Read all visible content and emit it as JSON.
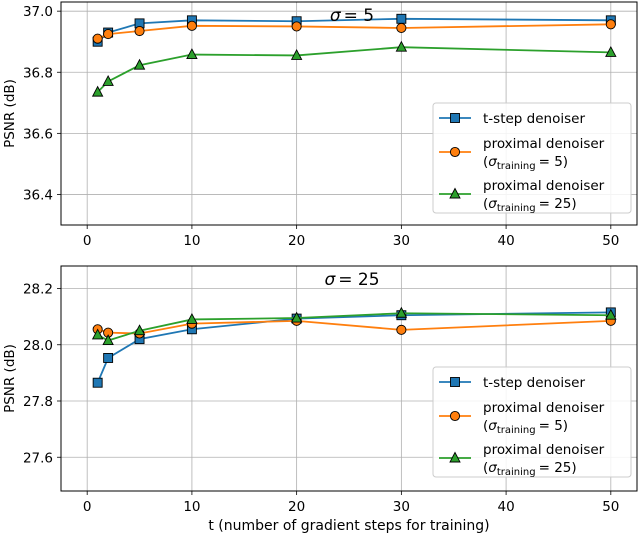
{
  "figure": {
    "shared_xlabel": "t (number of gradient steps for training)"
  },
  "chart_data": [
    {
      "type": "line",
      "title": "σ = 5",
      "title_main": "σ",
      "title_eq": "= 5",
      "xlabel": "",
      "ylabel": "PSNR (dB)",
      "xlim": [
        -2.5,
        52.5
      ],
      "ylim": [
        36.3,
        37.03
      ],
      "xticks": [
        0,
        10,
        20,
        30,
        40,
        50
      ],
      "yticks": [
        36.4,
        36.6,
        36.8,
        37.0
      ],
      "ytick_labels": [
        "36.4",
        "36.6",
        "36.8",
        "37.0"
      ],
      "grid": true,
      "legend_position": "center-right",
      "series": [
        {
          "name": "t-step denoiser",
          "legend_line1": "t-step denoiser",
          "color": "#1f77b4",
          "marker": "square",
          "x": [
            1,
            2,
            5,
            10,
            20,
            30,
            50
          ],
          "values": [
            36.9,
            36.93,
            36.96,
            36.97,
            36.967,
            36.975,
            36.97
          ]
        },
        {
          "name": "proximal denoiser (σ_training = 5)",
          "legend_line1": "proximal denoiser",
          "legend_sigma": "σ",
          "legend_sub": "training",
          "legend_eq": "= 5)",
          "color": "#ff7f0e",
          "marker": "circle",
          "x": [
            1,
            2,
            5,
            10,
            20,
            30,
            50
          ],
          "values": [
            36.91,
            36.925,
            36.935,
            36.952,
            36.95,
            36.945,
            36.957
          ]
        },
        {
          "name": "proximal denoiser (σ_training = 25)",
          "legend_line1": "proximal denoiser",
          "legend_sigma": "σ",
          "legend_sub": "training",
          "legend_eq": "= 25)",
          "color": "#2ca02c",
          "marker": "triangle",
          "x": [
            1,
            2,
            5,
            10,
            20,
            30,
            50
          ],
          "values": [
            36.735,
            36.77,
            36.823,
            36.858,
            36.855,
            36.882,
            36.865
          ]
        }
      ]
    },
    {
      "type": "line",
      "title": "σ = 25",
      "title_main": "σ",
      "title_eq": "= 25",
      "xlabel": "t (number of gradient steps for training)",
      "ylabel": "PSNR (dB)",
      "xlim": [
        -2.5,
        52.5
      ],
      "ylim": [
        27.48,
        28.28
      ],
      "xticks": [
        0,
        10,
        20,
        30,
        40,
        50
      ],
      "yticks": [
        27.6,
        27.8,
        28.0,
        28.2
      ],
      "ytick_labels": [
        "27.6",
        "27.8",
        "28.0",
        "28.2"
      ],
      "grid": true,
      "legend_position": "center-right",
      "series": [
        {
          "name": "t-step denoiser",
          "legend_line1": "t-step denoiser",
          "color": "#1f77b4",
          "marker": "square",
          "x": [
            1,
            2,
            5,
            10,
            20,
            30,
            50
          ],
          "values": [
            27.865,
            27.953,
            28.02,
            28.055,
            28.093,
            28.105,
            28.115
          ]
        },
        {
          "name": "proximal denoiser (σ_training = 5)",
          "legend_line1": "proximal denoiser",
          "legend_sigma": "σ",
          "legend_sub": "training",
          "legend_eq": "= 5)",
          "color": "#ff7f0e",
          "marker": "circle",
          "x": [
            1,
            2,
            5,
            10,
            20,
            30,
            50
          ],
          "values": [
            28.055,
            28.043,
            28.04,
            28.075,
            28.085,
            28.053,
            28.085
          ]
        },
        {
          "name": "proximal denoiser (σ_training = 25)",
          "legend_line1": "proximal denoiser",
          "legend_sigma": "σ",
          "legend_sub": "training",
          "legend_eq": "= 25)",
          "color": "#2ca02c",
          "marker": "triangle",
          "x": [
            1,
            2,
            5,
            10,
            20,
            30,
            50
          ],
          "values": [
            28.035,
            28.015,
            28.05,
            28.09,
            28.095,
            28.112,
            28.105
          ]
        }
      ]
    }
  ]
}
